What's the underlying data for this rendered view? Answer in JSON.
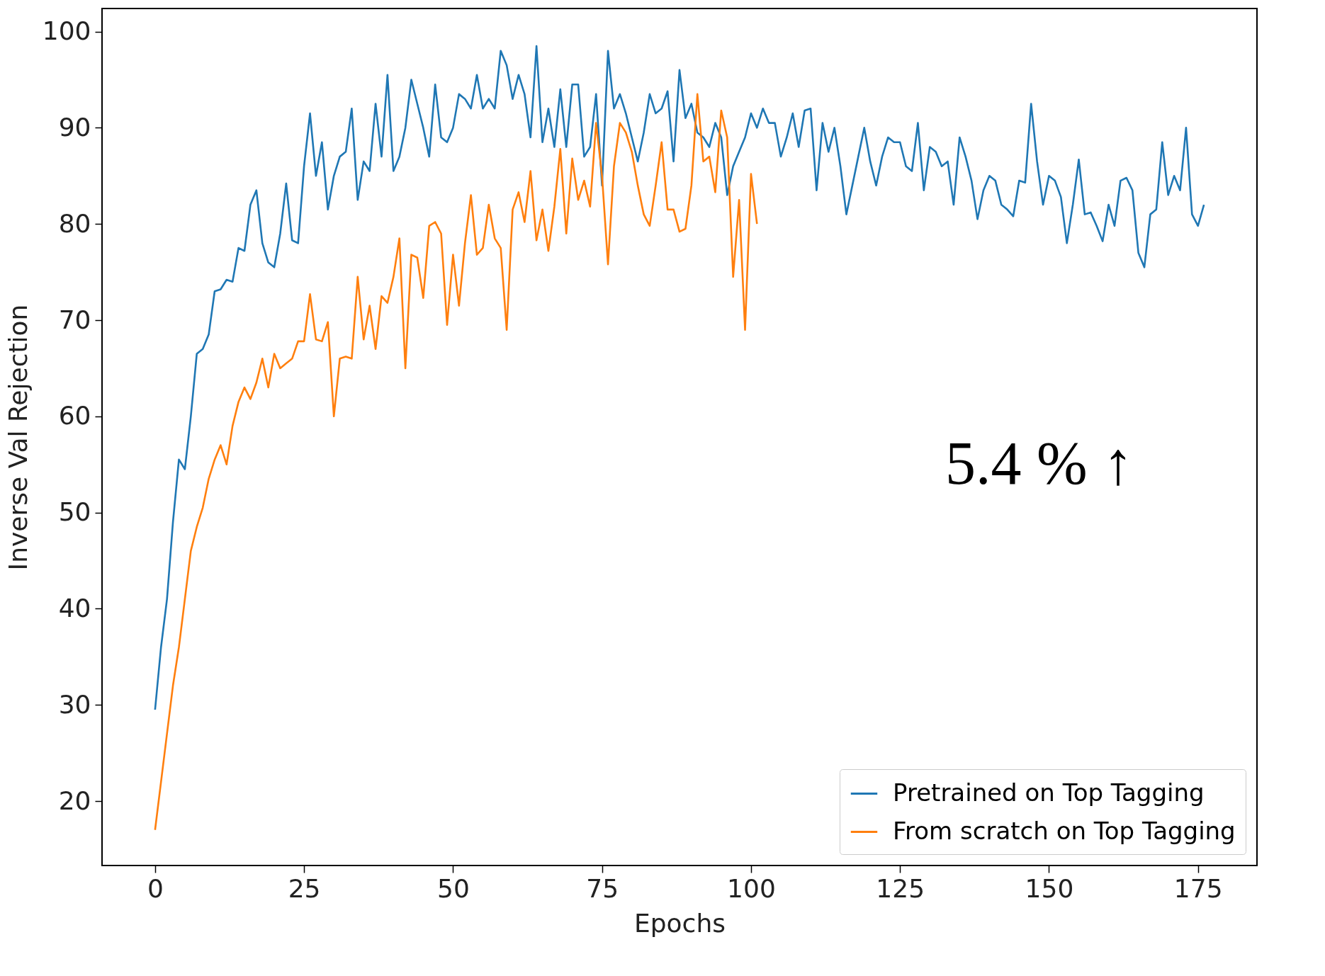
{
  "chart_data": {
    "type": "line",
    "xlabel": "Epochs",
    "ylabel": "Inverse Val Rejection",
    "xlim": [
      -8.9,
      184.9
    ],
    "ylim": [
      13.3,
      102.4
    ],
    "xticks": [
      0,
      25,
      50,
      75,
      100,
      125,
      150,
      175
    ],
    "yticks": [
      20,
      30,
      40,
      50,
      60,
      70,
      80,
      90,
      100
    ],
    "grid": false,
    "legend": "bottom right",
    "annotations": [
      "5.4 % ↑"
    ],
    "series": [
      {
        "name": "Pretrained on Top Tagging",
        "color": "#1f77b4",
        "x": [
          0,
          1,
          2,
          3,
          4,
          5,
          6,
          7,
          8,
          9,
          10,
          11,
          12,
          13,
          14,
          15,
          16,
          17,
          18,
          19,
          20,
          21,
          22,
          23,
          24,
          25,
          26,
          27,
          28,
          29,
          30,
          31,
          32,
          33,
          34,
          35,
          36,
          37,
          38,
          39,
          40,
          41,
          42,
          43,
          44,
          45,
          46,
          47,
          48,
          49,
          50,
          51,
          52,
          53,
          54,
          55,
          56,
          57,
          58,
          59,
          60,
          61,
          62,
          63,
          64,
          65,
          66,
          67,
          68,
          69,
          70,
          71,
          72,
          73,
          74,
          75,
          76,
          77,
          78,
          79,
          80,
          81,
          82,
          83,
          84,
          85,
          86,
          87,
          88,
          89,
          90,
          91,
          92,
          93,
          94,
          95,
          96,
          97,
          98,
          99,
          100,
          101,
          102,
          103,
          104,
          105,
          106,
          107,
          108,
          109,
          110,
          111,
          112,
          113,
          114,
          115,
          116,
          117,
          118,
          119,
          120,
          121,
          122,
          123,
          124,
          125,
          126,
          127,
          128,
          129,
          130,
          131,
          132,
          133,
          134,
          135,
          136,
          137,
          138,
          139,
          140,
          141,
          142,
          143,
          144,
          145,
          146,
          147,
          148,
          149,
          150,
          151,
          152,
          153,
          154,
          155,
          156,
          157,
          158,
          159,
          160,
          161,
          162,
          163,
          164,
          165,
          166,
          167,
          168,
          169,
          170,
          171,
          172,
          173,
          174,
          175,
          176
        ],
        "values": [
          29.5,
          36,
          41,
          49,
          55.5,
          54.5,
          60,
          66.5,
          67,
          68.5,
          73,
          73.2,
          74.2,
          74,
          77.5,
          77.2,
          82,
          83.5,
          78,
          76,
          75.5,
          79,
          84.2,
          78.3,
          78,
          86,
          91.5,
          85,
          88.5,
          81.5,
          85,
          87,
          87.5,
          92,
          82.5,
          86.5,
          85.5,
          92.5,
          87,
          95.5,
          85.5,
          87,
          90,
          95,
          92.5,
          90,
          87,
          94.5,
          89,
          88.5,
          90,
          93.5,
          93,
          92,
          95.5,
          92,
          93,
          92,
          98,
          96.5,
          93,
          95.5,
          93.5,
          89,
          98.5,
          88.5,
          92,
          88,
          94,
          88,
          94.5,
          94.5,
          87,
          88,
          93.5,
          84,
          98,
          92,
          93.5,
          91.5,
          89,
          86.5,
          89.5,
          93.5,
          91.5,
          92,
          93.8,
          86.5,
          96,
          91,
          92.5,
          89.5,
          89,
          88,
          90.5,
          89,
          83,
          86,
          87.5,
          89,
          91.5,
          90,
          92,
          90.5,
          90.5,
          87,
          89,
          91.5,
          88,
          91.8,
          92,
          83.5,
          90.5,
          87.5,
          90,
          86,
          81,
          84,
          87,
          90,
          86.5,
          84,
          87,
          89,
          88.5,
          88.5,
          86,
          85.5,
          90.5,
          83.5,
          88,
          87.5,
          86,
          86.5,
          82,
          89,
          87,
          84.5,
          80.5,
          83.5,
          85,
          84.5,
          82,
          81.5,
          80.8,
          84.5,
          84.3,
          92.5,
          86.5,
          82,
          85,
          84.5,
          82.8,
          78,
          82,
          86.7,
          81,
          81.2,
          79.8,
          78.2,
          82,
          79.8,
          84.5,
          84.8,
          83.5,
          77,
          75.5,
          81,
          81.5,
          88.5,
          83,
          85,
          83.5,
          90,
          81,
          79.8,
          82
        ]
      },
      {
        "name": "From scratch on Top Tagging",
        "color": "#ff7f0e",
        "x": [
          0,
          1,
          2,
          3,
          4,
          5,
          6,
          7,
          8,
          9,
          10,
          11,
          12,
          13,
          14,
          15,
          16,
          17,
          18,
          19,
          20,
          21,
          22,
          23,
          24,
          25,
          26,
          27,
          28,
          29,
          30,
          31,
          32,
          33,
          34,
          35,
          36,
          37,
          38,
          39,
          40,
          41,
          42,
          43,
          44,
          45,
          46,
          47,
          48,
          49,
          50,
          51,
          52,
          53,
          54,
          55,
          56,
          57,
          58,
          59,
          60,
          61,
          62,
          63,
          64,
          65,
          66,
          67,
          68,
          69,
          70,
          71,
          72,
          73,
          74,
          75,
          76,
          77,
          78,
          79,
          80,
          81,
          82,
          83,
          84,
          85,
          86,
          87,
          88,
          89,
          90,
          91,
          92,
          93,
          94,
          95,
          96,
          97,
          98,
          99,
          100,
          101
        ],
        "values": [
          17,
          22,
          27,
          32,
          36,
          41,
          46,
          48.5,
          50.5,
          53.5,
          55.5,
          57,
          55,
          59,
          61.5,
          63,
          61.8,
          63.5,
          66,
          63,
          66.5,
          65,
          65.5,
          66,
          67.8,
          67.8,
          72.7,
          68,
          67.8,
          69.8,
          60,
          66,
          66.2,
          66,
          74.5,
          68,
          71.5,
          67,
          72.5,
          71.8,
          74.5,
          78.5,
          65,
          76.8,
          76.5,
          72.3,
          79.8,
          80.2,
          79,
          69.5,
          76.8,
          71.5,
          78,
          83,
          76.8,
          77.5,
          82,
          78.5,
          77.5,
          69,
          81.5,
          83.3,
          80.2,
          85.5,
          78.3,
          81.5,
          77.2,
          81.8,
          87.8,
          79,
          86.8,
          82.5,
          84.5,
          81.8,
          90.5,
          85,
          75.8,
          86,
          90.5,
          89.5,
          87.5,
          84,
          81,
          79.8,
          84,
          88.5,
          81.5,
          81.5,
          79.2,
          79.5,
          84,
          93.5,
          86.5,
          87,
          83.3,
          91.8,
          89,
          74.5,
          82.5,
          69,
          85.2,
          80
        ]
      }
    ]
  }
}
